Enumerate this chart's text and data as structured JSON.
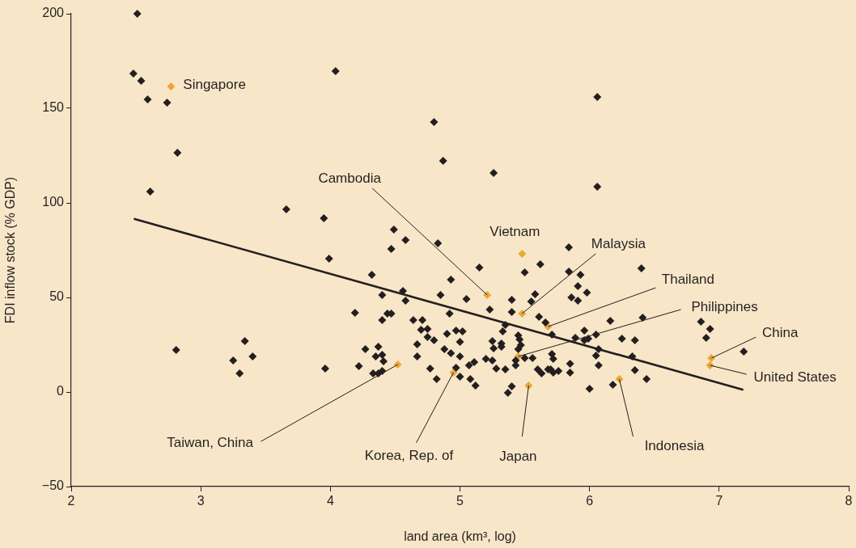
{
  "chart_data": {
    "type": "scatter",
    "xlabel": "land area (km³, log)",
    "ylabel": "FDI inflow stock (% GDP)",
    "xlim": [
      2,
      8
    ],
    "xticks": [
      2,
      3,
      4,
      5,
      6,
      7,
      8
    ],
    "ylim": [
      -50,
      200
    ],
    "yticks": [
      {
        "value": -50,
        "label": "−50"
      },
      0,
      50,
      100,
      150,
      200
    ],
    "grid": false,
    "legend": false,
    "marker": "diamond",
    "series": [
      {
        "color": "#231f20",
        "x": [
          2.51,
          2.48,
          2.54,
          2.59,
          2.74,
          2.82,
          2.61,
          4.04,
          4.8,
          4.87,
          5.26,
          6.06,
          6.06,
          3.66,
          3.95,
          3.99,
          3.34,
          3.25,
          3.3,
          3.4,
          2.81,
          3.96,
          4.32,
          4.19,
          4.22,
          4.27,
          4.33,
          4.37,
          4.35,
          4.4,
          4.41,
          4.37,
          4.4,
          4.49,
          4.47,
          4.58,
          4.83,
          4.4,
          4.56,
          4.58,
          4.85,
          4.93,
          4.44,
          4.47,
          4.4,
          4.64,
          4.71,
          4.7,
          4.75,
          4.75,
          4.8,
          4.9,
          4.97,
          5.02,
          5.0,
          4.92,
          5.05,
          5.15,
          5.23,
          5.4,
          5.4,
          5.5,
          5.62,
          5.58,
          5.55,
          5.61,
          5.66,
          5.35,
          5.33,
          5.25,
          5.26,
          5.32,
          5.32,
          5.45,
          5.46,
          5.47,
          5.45,
          4.67,
          4.67,
          4.88,
          4.93,
          5.0,
          4.97,
          4.77,
          4.82,
          5.0,
          5.07,
          5.11,
          5.08,
          5.12,
          5.2,
          5.25,
          5.28,
          5.35,
          5.43,
          5.43,
          5.5,
          5.56,
          5.6,
          5.63,
          5.68,
          5.4,
          5.37,
          5.84,
          5.84,
          5.93,
          5.91,
          5.98,
          5.86,
          5.91,
          6.4,
          5.71,
          5.96,
          5.89,
          5.96,
          5.99,
          6.05,
          6.16,
          6.41,
          6.25,
          6.35,
          6.07,
          6.05,
          6.07,
          6.33,
          6.35,
          6.44,
          6.0,
          6.18,
          5.85,
          5.85,
          5.71,
          5.72,
          5.7,
          5.72,
          5.76,
          6.86,
          6.93,
          6.9,
          7.19
        ],
        "values": [
          200,
          168.4,
          164.5,
          154.7,
          153.0,
          126.5,
          106.0,
          169.7,
          142.7,
          122.2,
          115.8,
          156.0,
          108.5,
          96.6,
          91.9,
          70.5,
          26.9,
          16.7,
          9.8,
          18.8,
          22.2,
          12.4,
          62.0,
          41.9,
          13.7,
          22.6,
          9.8,
          23.9,
          18.8,
          19.7,
          16.2,
          9.8,
          11.1,
          85.9,
          75.6,
          80.3,
          78.6,
          51.3,
          53.4,
          48.3,
          51.3,
          59.4,
          41.5,
          41.5,
          38.0,
          38.0,
          38.0,
          32.9,
          33.3,
          29.1,
          27.4,
          30.8,
          32.5,
          32.1,
          26.5,
          41.5,
          49.1,
          65.8,
          43.6,
          48.7,
          42.3,
          63.2,
          67.5,
          51.7,
          47.9,
          39.7,
          36.8,
          35.5,
          32.1,
          26.9,
          23.1,
          25.6,
          23.9,
          29.9,
          27.8,
          24.8,
          22.6,
          25.2,
          18.8,
          22.6,
          20.5,
          18.8,
          12.8,
          12.4,
          6.8,
          8.1,
          14.1,
          15.8,
          6.8,
          3.4,
          17.5,
          16.7,
          12.4,
          12.0,
          14.1,
          16.7,
          17.9,
          17.9,
          12.0,
          9.8,
          12.0,
          3.0,
          -0.4,
          76.5,
          63.7,
          62.0,
          56.0,
          52.6,
          50.0,
          48.3,
          65.4,
          30.3,
          32.5,
          28.6,
          27.4,
          28.2,
          30.3,
          37.6,
          39.3,
          28.2,
          27.4,
          22.6,
          19.2,
          14.1,
          18.8,
          11.5,
          6.8,
          1.7,
          3.8,
          15.0,
          10.3,
          20.1,
          17.5,
          12.0,
          10.3,
          11.1,
          37.2,
          33.3,
          28.6,
          21.4
        ]
      },
      {
        "color": "#e8a838",
        "x": [
          2.77,
          5.21,
          5.48,
          5.48,
          5.68,
          5.45,
          6.94,
          6.93,
          4.52,
          4.95,
          5.53,
          6.23
        ],
        "values": [
          161.5,
          51.3,
          73.1,
          41.5,
          34.6,
          18.8,
          17.9,
          14.1,
          14.5,
          10.3,
          3.4,
          6.8
        ]
      },
      {
        "type": "line",
        "color": "#231f20",
        "marker": "none",
        "x": [
          2.49,
          7.18
        ],
        "values": [
          91.5,
          1.3
        ]
      }
    ],
    "annotations": [
      {
        "text": "Singapore",
        "x": 2.77,
        "y": 161.5
      },
      {
        "text": "Cambodia",
        "x": 5.21,
        "y": 51.3
      },
      {
        "text": "Vietnam",
        "x": 5.48,
        "y": 73.1
      },
      {
        "text": "Malaysia",
        "x": 5.48,
        "y": 41.5
      },
      {
        "text": "Thailand",
        "x": 5.68,
        "y": 34.6
      },
      {
        "text": "Philippines",
        "x": 5.45,
        "y": 18.8
      },
      {
        "text": "China",
        "x": 6.94,
        "y": 17.9
      },
      {
        "text": "United States",
        "x": 6.93,
        "y": 14.1
      },
      {
        "text": "Taiwan, China",
        "x": 4.52,
        "y": 14.5
      },
      {
        "text": "Korea, Rep. of",
        "x": 4.95,
        "y": 10.3
      },
      {
        "text": "Japan",
        "x": 5.53,
        "y": 3.4
      },
      {
        "text": "Indonesia",
        "x": 6.23,
        "y": 6.8
      }
    ]
  }
}
